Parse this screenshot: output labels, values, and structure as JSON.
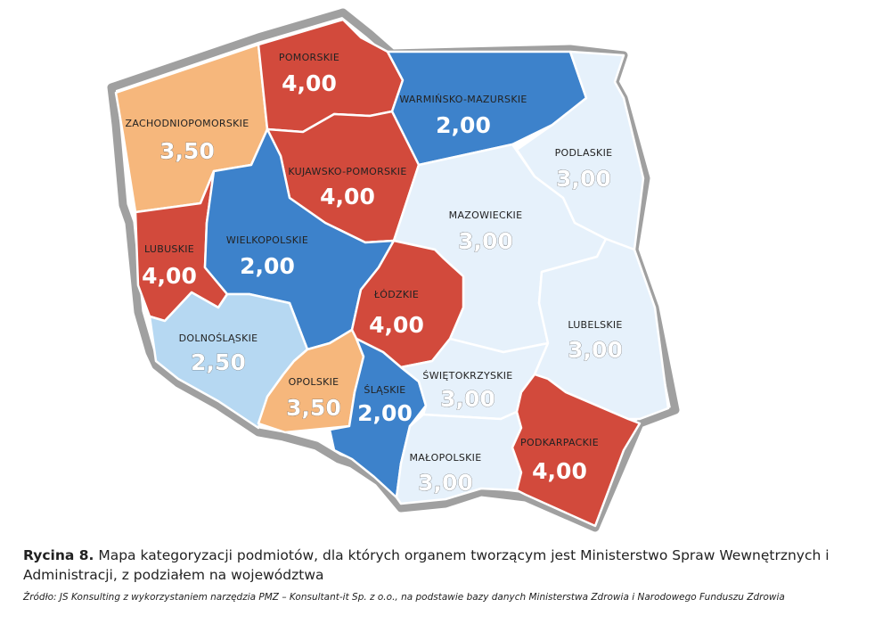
{
  "colors": {
    "red": "#d24a3c",
    "blue": "#3d82cb",
    "light_blue": "#b6d8f2",
    "pale_blue": "#e6f1fb",
    "orange": "#f6b77c",
    "border": "#a0a0a0"
  },
  "regions": [
    {
      "id": "zachodniopomorskie",
      "name": "ZACHODNIOPOMORSKIE",
      "value": "3,50",
      "color": "orange"
    },
    {
      "id": "pomorskie",
      "name": "POMORSKIE",
      "value": "4,00",
      "color": "red"
    },
    {
      "id": "warminsko-mazurskie",
      "name": "WARMIŃSKO-MAZURSKIE",
      "value": "2,00",
      "color": "blue"
    },
    {
      "id": "podlaskie",
      "name": "PODLASKIE",
      "value": "3,00",
      "color": "pale_blue"
    },
    {
      "id": "kujawsko-pomorskie",
      "name": "KUJAWSKO-POMORSKIE",
      "value": "4,00",
      "color": "red"
    },
    {
      "id": "lubuskie",
      "name": "LUBUSKIE",
      "value": "4,00",
      "color": "red"
    },
    {
      "id": "wielkopolskie",
      "name": "WIELKOPOLSKIE",
      "value": "2,00",
      "color": "blue"
    },
    {
      "id": "mazowieckie",
      "name": "MAZOWIECKIE",
      "value": "3,00",
      "color": "pale_blue"
    },
    {
      "id": "lodzkie",
      "name": "ŁÓDZKIE",
      "value": "4,00",
      "color": "red"
    },
    {
      "id": "dolnoslaskie",
      "name": "DOLNOŚLĄSKIE",
      "value": "2,50",
      "color": "light_blue"
    },
    {
      "id": "opolskie",
      "name": "OPOLSKIE",
      "value": "3,50",
      "color": "orange"
    },
    {
      "id": "slaskie",
      "name": "ŚLĄSKIE",
      "value": "2,00",
      "color": "blue"
    },
    {
      "id": "swietokrzyskie",
      "name": "ŚWIĘTOKRZYSKIE",
      "value": "3,00",
      "color": "pale_blue"
    },
    {
      "id": "lubelskie",
      "name": "LUBELSKIE",
      "value": "3,00",
      "color": "pale_blue"
    },
    {
      "id": "malopolskie",
      "name": "MAŁOPOLSKIE",
      "value": "3,00",
      "color": "pale_blue"
    },
    {
      "id": "podkarpackie",
      "name": "PODKARPACKIE",
      "value": "4,00",
      "color": "red"
    }
  ],
  "caption": {
    "label": "Rycina 8.",
    "text": " Mapa kategoryzacji podmiotów, dla których organem tworzącym jest Ministerstwo Spraw Wewnętrznych i Administracji, z podziałem na województwa"
  },
  "source": "Źródło: JS Konsulting z wykorzystaniem narzędzia PMZ – Konsultant-it Sp. z o.o., na podstawie bazy danych Ministerstwa Zdrowia i Narodowego Funduszu Zdrowia"
}
